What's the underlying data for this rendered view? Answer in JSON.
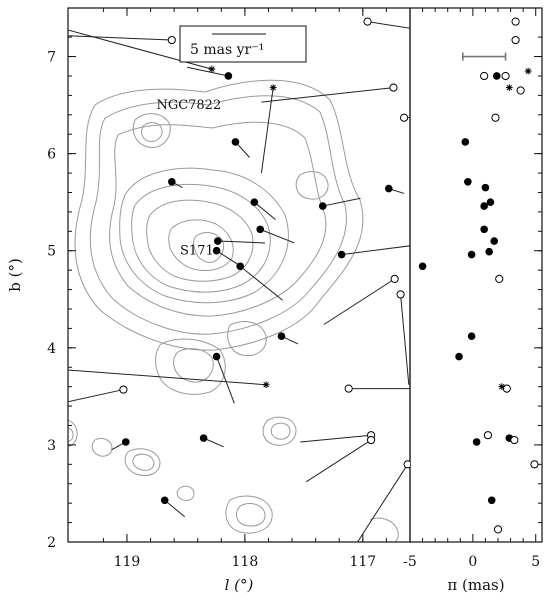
{
  "chart_data": [
    {
      "type": "scatter",
      "panel": "sky",
      "xlabel": "l (°)",
      "ylabel": "b (°)",
      "xlim": [
        119.5,
        116.6
      ],
      "ylim": [
        2.0,
        7.5
      ],
      "xticks": [
        119,
        118,
        117
      ],
      "yticks": [
        2,
        3,
        4,
        5,
        6,
        7
      ],
      "x_reversed": true,
      "grid": false,
      "legend": "none",
      "annotations": [
        {
          "text": "NGC7822",
          "l": 118.75,
          "b": 6.5
        },
        {
          "text": "S171",
          "l": 118.55,
          "b": 5.0
        }
      ],
      "scale_bar": {
        "label": "5 mas yr⁻¹"
      },
      "series": [
        {
          "marker": "filled-circle",
          "points": [
            {
              "l": 118.14,
              "b": 6.8,
              "dl": 0.35,
              "db": 0.09
            },
            {
              "l": 118.08,
              "b": 6.12,
              "dl": -0.12,
              "db": -0.16
            },
            {
              "l": 118.62,
              "b": 5.71,
              "dl": -0.09,
              "db": -0.06
            },
            {
              "l": 117.92,
              "b": 5.5,
              "dl": -0.18,
              "db": -0.18
            },
            {
              "l": 117.87,
              "b": 5.22,
              "dl": -0.29,
              "db": -0.14
            },
            {
              "l": 118.23,
              "b": 5.1,
              "dl": -0.4,
              "db": -0.02
            },
            {
              "l": 118.24,
              "b": 5.0,
              "dl": -0.18,
              "db": -0.14
            },
            {
              "l": 118.04,
              "b": 4.84,
              "dl": -0.36,
              "db": -0.35
            },
            {
              "l": 117.34,
              "b": 5.46,
              "dl": -0.32,
              "db": 0.08
            },
            {
              "l": 117.18,
              "b": 4.96,
              "dl": -0.64,
              "db": 0.1
            },
            {
              "l": 116.78,
              "b": 5.64,
              "dl": -0.13,
              "db": -0.05
            },
            {
              "l": 117.69,
              "b": 4.12,
              "dl": -0.14,
              "db": -0.08
            },
            {
              "l": 118.24,
              "b": 3.91,
              "dl": -0.15,
              "db": -0.48
            },
            {
              "l": 119.01,
              "b": 3.03,
              "dl": 0.12,
              "db": -0.08
            },
            {
              "l": 118.35,
              "b": 3.07,
              "dl": -0.17,
              "db": -0.09
            },
            {
              "l": 118.68,
              "b": 2.43,
              "dl": -0.17,
              "db": -0.17
            }
          ]
        },
        {
          "marker": "open-circle",
          "points": [
            {
              "l": 118.62,
              "b": 7.17,
              "dl": 1.0,
              "db": 0.05
            },
            {
              "l": 116.96,
              "b": 7.36,
              "dl": -0.42,
              "db": -0.08
            },
            {
              "l": 116.74,
              "b": 6.68,
              "dl": 1.12,
              "db": -0.15
            },
            {
              "l": 116.56,
              "b": 6.78,
              "dl": -0.13,
              "db": -0.24
            },
            {
              "l": 116.65,
              "b": 6.37,
              "dl": -0.32,
              "db": 0.02
            },
            {
              "l": 116.73,
              "b": 4.71,
              "dl": 0.6,
              "db": -0.47
            },
            {
              "l": 116.68,
              "b": 4.55,
              "dl": -0.07,
              "db": -0.93
            },
            {
              "l": 117.12,
              "b": 3.58,
              "dl": -0.75,
              "db": 0.0
            },
            {
              "l": 119.03,
              "b": 3.57,
              "dl": 0.6,
              "db": -0.16
            },
            {
              "l": 116.93,
              "b": 3.1,
              "dl": 0.6,
              "db": -0.07
            },
            {
              "l": 116.93,
              "b": 3.05,
              "dl": 0.55,
              "db": -0.43
            },
            {
              "l": 116.62,
              "b": 2.8,
              "dl": 0.43,
              "db": -0.81
            }
          ]
        },
        {
          "marker": "asterisk",
          "points": [
            {
              "l": 118.28,
              "b": 6.87,
              "dl": 1.3,
              "db": 0.43
            },
            {
              "l": 117.76,
              "b": 6.68,
              "dl": 0.1,
              "db": -0.88
            },
            {
              "l": 117.82,
              "b": 3.62,
              "dl": 2.0,
              "db": 0.18
            }
          ]
        }
      ]
    },
    {
      "type": "scatter",
      "panel": "parallax",
      "xlabel": "π (mas)",
      "xlim": [
        -5,
        5.5
      ],
      "ylim": [
        2.0,
        7.5
      ],
      "xticks": [
        -5,
        0,
        5
      ],
      "grid": false,
      "legend": "none",
      "series": [
        {
          "marker": "filled-circle",
          "points": [
            {
              "pi": 1.9,
              "b": 6.8
            },
            {
              "pi": -0.6,
              "b": 6.12
            },
            {
              "pi": -0.4,
              "b": 5.71
            },
            {
              "pi": 1.0,
              "b": 5.65
            },
            {
              "pi": 1.4,
              "b": 5.5
            },
            {
              "pi": 0.9,
              "b": 5.46
            },
            {
              "pi": 0.9,
              "b": 5.22
            },
            {
              "pi": 1.7,
              "b": 5.1
            },
            {
              "pi": -0.1,
              "b": 4.96
            },
            {
              "pi": 1.3,
              "b": 4.99
            },
            {
              "pi": -4.0,
              "b": 4.84
            },
            {
              "pi": -0.1,
              "b": 4.12
            },
            {
              "pi": -1.1,
              "b": 3.91
            },
            {
              "pi": 0.3,
              "b": 3.03
            },
            {
              "pi": 2.9,
              "b": 3.07
            },
            {
              "pi": 1.5,
              "b": 2.43
            }
          ]
        },
        {
          "marker": "open-circle",
          "points": [
            {
              "pi": 3.4,
              "b": 7.36
            },
            {
              "pi": 3.4,
              "b": 7.17
            },
            {
              "pi": 0.9,
              "b": 6.8
            },
            {
              "pi": 2.6,
              "b": 6.8
            },
            {
              "pi": 3.8,
              "b": 6.65
            },
            {
              "pi": 1.8,
              "b": 6.37
            },
            {
              "pi": 2.1,
              "b": 4.71
            },
            {
              "pi": 2.7,
              "b": 3.58
            },
            {
              "pi": 1.2,
              "b": 3.1
            },
            {
              "pi": 3.3,
              "b": 3.05
            },
            {
              "pi": 4.9,
              "b": 2.8
            },
            {
              "pi": 2.0,
              "b": 2.13
            }
          ]
        },
        {
          "marker": "asterisk",
          "points": [
            {
              "pi": 4.4,
              "b": 6.85
            },
            {
              "pi": 2.9,
              "b": 6.68
            },
            {
              "pi": 2.3,
              "b": 3.6
            }
          ]
        }
      ],
      "error_bar": {
        "pi": [
          -0.8,
          2.6
        ],
        "b": 7.0
      }
    }
  ]
}
